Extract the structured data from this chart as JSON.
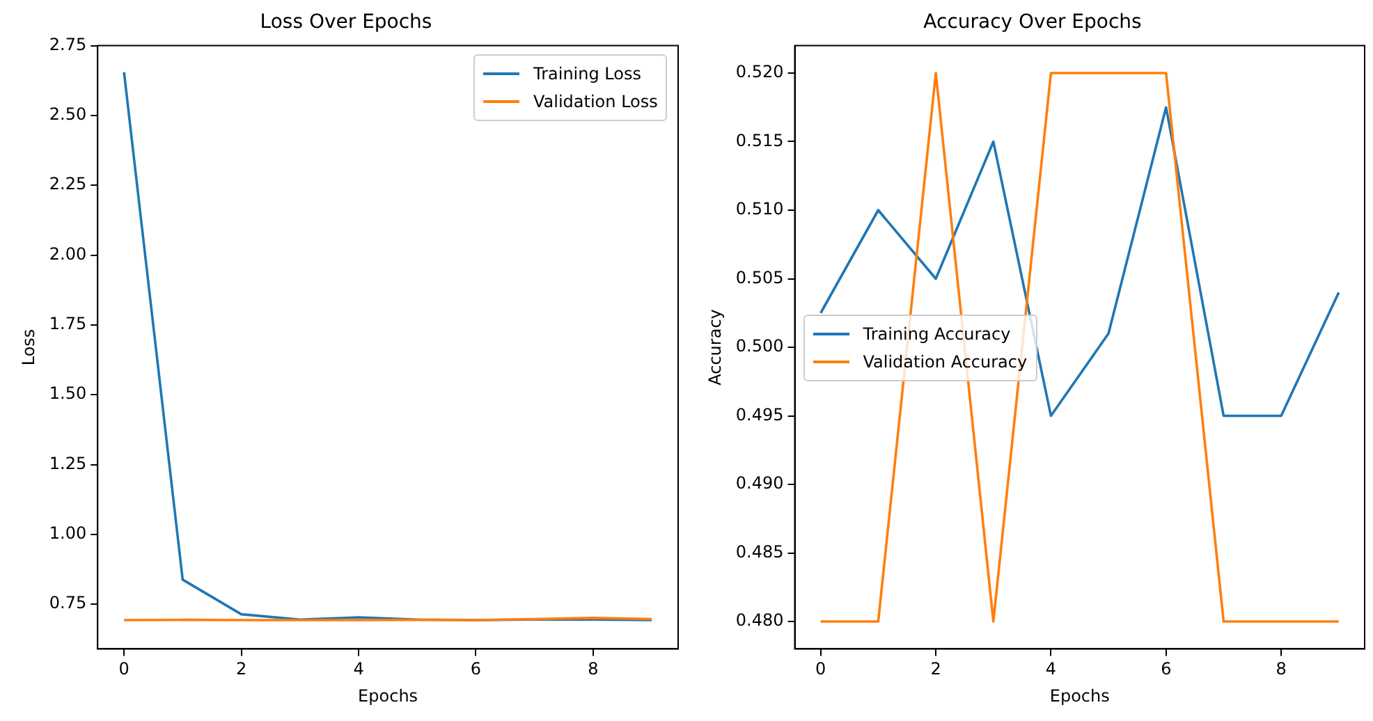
{
  "chart_data": [
    {
      "type": "line",
      "title": "Loss Over Epochs",
      "xlabel": "Epochs",
      "ylabel": "Loss",
      "x": [
        0,
        1,
        2,
        3,
        4,
        5,
        6,
        7,
        8,
        9
      ],
      "xlim": [
        -0.45,
        9.45
      ],
      "xticks": [
        0,
        2,
        4,
        6,
        8
      ],
      "ylim": [
        0.59,
        2.75
      ],
      "yticks": [
        {
          "value": 0.75,
          "label": "0.75"
        },
        {
          "value": 1,
          "label": "1.00"
        },
        {
          "value": 1.25,
          "label": "1.25"
        },
        {
          "value": 1.5,
          "label": "1.50"
        },
        {
          "value": 1.75,
          "label": "1.75"
        },
        {
          "value": 2,
          "label": "2.00"
        },
        {
          "value": 2.25,
          "label": "2.25"
        },
        {
          "value": 2.5,
          "label": "2.50"
        },
        {
          "value": 2.75,
          "label": "2.75"
        }
      ],
      "grid": false,
      "legend": "top right",
      "series": [
        {
          "name": "Training Loss",
          "color": "#1f77b4",
          "values": [
            2.655,
            0.838,
            0.714,
            0.695,
            0.703,
            0.695,
            0.693,
            0.695,
            0.695,
            0.693
          ]
        },
        {
          "name": "Validation Loss",
          "color": "#ff7f0e",
          "values": [
            0.693,
            0.694,
            0.693,
            0.693,
            0.693,
            0.694,
            0.693,
            0.697,
            0.701,
            0.697
          ]
        }
      ]
    },
    {
      "type": "line",
      "title": "Accuracy Over Epochs",
      "xlabel": "Epochs",
      "ylabel": "Accuracy",
      "x": [
        0,
        1,
        2,
        3,
        4,
        5,
        6,
        7,
        8,
        9
      ],
      "xlim": [
        -0.45,
        9.45
      ],
      "xticks": [
        0,
        2,
        4,
        6,
        8
      ],
      "ylim": [
        0.478,
        0.522
      ],
      "yticks": [
        {
          "value": 0.48,
          "label": "0.480"
        },
        {
          "value": 0.485,
          "label": "0.485"
        },
        {
          "value": 0.49,
          "label": "0.490"
        },
        {
          "value": 0.495,
          "label": "0.495"
        },
        {
          "value": 0.5,
          "label": "0.500"
        },
        {
          "value": 0.505,
          "label": "0.505"
        },
        {
          "value": 0.51,
          "label": "0.510"
        },
        {
          "value": 0.515,
          "label": "0.515"
        },
        {
          "value": 0.52,
          "label": "0.520"
        }
      ],
      "grid": false,
      "legend": "left",
      "series": [
        {
          "name": "Training Accuracy",
          "color": "#1f77b4",
          "values": [
            0.5025,
            0.51,
            0.505,
            0.515,
            0.495,
            0.501,
            0.5175,
            0.495,
            0.495,
            0.504
          ]
        },
        {
          "name": "Validation Accuracy",
          "color": "#ff7f0e",
          "values": [
            0.48,
            0.48,
            0.52,
            0.48,
            0.52,
            0.52,
            0.52,
            0.48,
            0.48,
            0.48
          ]
        }
      ]
    }
  ]
}
